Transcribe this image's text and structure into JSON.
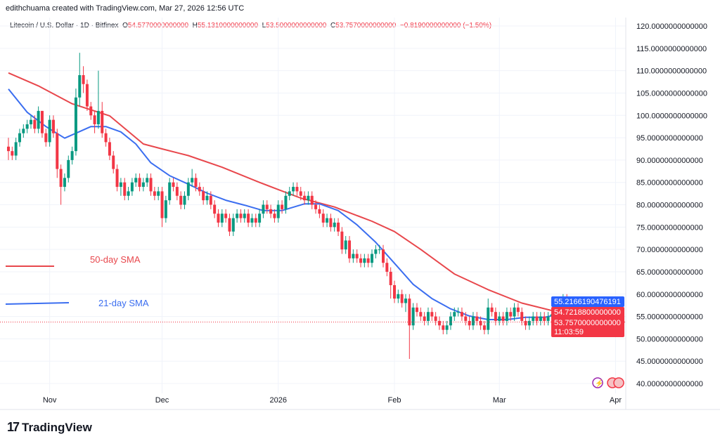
{
  "header": {
    "credit": "edithchuama created with TradingView.com, Mar 27, 2026 12:56 UTC",
    "symbol": "Litecoin / U.S. Dollar · 1D · Bitfinex",
    "o_label": "O",
    "o": "54.5770000000000",
    "h_label": "H",
    "h": "55.1310000000000",
    "l_label": "L",
    "l": "53.5000000000000",
    "c_label": "C",
    "c": "53.7570000000000",
    "change": "−0.8190000000000 (−1.50%)"
  },
  "logo": {
    "text": "TradingView",
    "mark": "17"
  },
  "colors": {
    "up": "#089981",
    "down": "#f23645",
    "sma21": "#3b6ef0",
    "sma50": "#e8474c",
    "grid": "#f0f3fa"
  },
  "chart_data": {
    "type": "candlestick",
    "title": "Litecoin / U.S. Dollar · 1D · Bitfinex",
    "ylim": [
      40,
      120
    ],
    "y_ticks": [
      "120.0000000000000",
      "115.0000000000000",
      "110.0000000000000",
      "105.0000000000000",
      "100.0000000000000",
      "95.0000000000000",
      "90.0000000000000",
      "85.0000000000000",
      "80.0000000000000",
      "75.0000000000000",
      "70.0000000000000",
      "65.0000000000000",
      "60.0000000000000",
      "55.0000000000000",
      "50.0000000000000",
      "45.0000000000000",
      "40.0000000000000"
    ],
    "x_ticks": [
      {
        "label": "Nov",
        "date": "2025-11-01"
      },
      {
        "label": "Dec",
        "date": "2025-12-01"
      },
      {
        "label": "2026",
        "date": "2026-01-01"
      },
      {
        "label": "Feb",
        "date": "2026-02-01"
      },
      {
        "label": "Mar",
        "date": "2026-03-01"
      },
      {
        "label": "Apr",
        "date": "2026-04-01"
      }
    ],
    "grid": true,
    "price_tags": [
      {
        "value": "55.2166190476191",
        "series": "21-day SMA",
        "color": "#2962ff"
      },
      {
        "value": "54.7218800000000",
        "series": "50-day SMA",
        "color": "#f23645"
      },
      {
        "value": "53.7570000000000",
        "countdown": "11:03:59",
        "series": "last",
        "color": "#f23645"
      }
    ],
    "legend": [
      {
        "name": "50-day SMA",
        "color": "#e8474c"
      },
      {
        "name": "21-day SMA",
        "color": "#3b6ef0"
      }
    ],
    "candles_fields": [
      "date",
      "open",
      "high",
      "low",
      "close"
    ],
    "candles": [
      [
        "2025-10-21",
        93,
        95,
        90,
        92
      ],
      [
        "2025-10-22",
        92,
        93,
        90,
        91
      ],
      [
        "2025-10-23",
        91,
        95,
        90,
        94
      ],
      [
        "2025-10-24",
        94,
        97,
        93,
        96
      ],
      [
        "2025-10-25",
        96,
        98,
        95,
        97
      ],
      [
        "2025-10-26",
        97,
        99,
        96,
        98
      ],
      [
        "2025-10-27",
        98,
        100,
        97,
        99
      ],
      [
        "2025-10-28",
        99,
        100,
        96,
        97
      ],
      [
        "2025-10-29",
        97,
        102,
        96,
        101
      ],
      [
        "2025-10-30",
        101,
        101,
        95,
        96
      ],
      [
        "2025-10-31",
        96,
        97,
        93,
        94
      ],
      [
        "2025-11-01",
        94,
        100,
        93,
        99
      ],
      [
        "2025-11-02",
        99,
        100,
        95,
        96
      ],
      [
        "2025-11-03",
        96,
        97,
        86,
        88
      ],
      [
        "2025-11-04",
        88,
        89,
        80,
        84
      ],
      [
        "2025-11-05",
        84,
        87,
        83,
        86
      ],
      [
        "2025-11-06",
        86,
        91,
        85,
        90
      ],
      [
        "2025-11-07",
        90,
        93,
        89,
        92
      ],
      [
        "2025-11-08",
        92,
        106,
        91,
        104
      ],
      [
        "2025-11-09",
        104,
        114,
        102,
        109
      ],
      [
        "2025-11-10",
        109,
        111,
        105,
        107
      ],
      [
        "2025-11-11",
        107,
        108,
        101,
        102
      ],
      [
        "2025-11-12",
        102,
        103,
        99,
        100
      ],
      [
        "2025-11-13",
        100,
        101,
        96,
        98
      ],
      [
        "2025-11-14",
        98,
        110,
        97,
        101
      ],
      [
        "2025-11-15",
        101,
        103,
        95,
        96
      ],
      [
        "2025-11-16",
        96,
        97,
        93,
        94
      ],
      [
        "2025-11-17",
        94,
        95,
        90,
        91
      ],
      [
        "2025-11-18",
        91,
        92,
        87,
        88
      ],
      [
        "2025-11-19",
        88,
        89,
        83,
        84
      ],
      [
        "2025-11-20",
        84,
        86,
        82,
        85
      ],
      [
        "2025-11-21",
        85,
        86,
        81,
        82
      ],
      [
        "2025-11-22",
        82,
        84,
        81,
        83
      ],
      [
        "2025-11-23",
        83,
        86,
        82,
        85
      ],
      [
        "2025-11-24",
        85,
        87,
        84,
        86
      ],
      [
        "2025-11-25",
        86,
        87,
        83,
        84
      ],
      [
        "2025-11-26",
        84,
        86,
        83,
        85
      ],
      [
        "2025-11-27",
        85,
        87,
        84,
        86
      ],
      [
        "2025-11-28",
        86,
        87,
        82,
        83
      ],
      [
        "2025-11-29",
        83,
        84,
        81,
        82
      ],
      [
        "2025-11-30",
        82,
        84,
        81,
        83
      ],
      [
        "2025-12-01",
        83,
        84,
        75,
        77
      ],
      [
        "2025-12-02",
        77,
        82,
        76,
        81
      ],
      [
        "2025-12-03",
        81,
        86,
        80,
        85
      ],
      [
        "2025-12-04",
        85,
        86,
        83,
        84
      ],
      [
        "2025-12-05",
        84,
        85,
        81,
        82
      ],
      [
        "2025-12-06",
        82,
        83,
        79,
        80
      ],
      [
        "2025-12-07",
        80,
        83,
        79,
        82
      ],
      [
        "2025-12-08",
        82,
        86,
        81,
        85
      ],
      [
        "2025-12-09",
        85,
        88,
        84,
        86
      ],
      [
        "2025-12-10",
        86,
        87,
        83,
        84
      ],
      [
        "2025-12-11",
        84,
        85,
        82,
        83
      ],
      [
        "2025-12-12",
        83,
        84,
        80,
        81
      ],
      [
        "2025-12-13",
        81,
        83,
        80,
        82
      ],
      [
        "2025-12-14",
        82,
        83,
        79,
        80
      ],
      [
        "2025-12-15",
        80,
        81,
        77,
        78
      ],
      [
        "2025-12-16",
        78,
        79,
        75,
        76
      ],
      [
        "2025-12-17",
        76,
        79,
        75,
        78
      ],
      [
        "2025-12-18",
        78,
        79,
        76,
        77
      ],
      [
        "2025-12-19",
        77,
        78,
        73,
        74
      ],
      [
        "2025-12-20",
        74,
        78,
        73,
        77
      ],
      [
        "2025-12-21",
        77,
        79,
        76,
        78
      ],
      [
        "2025-12-22",
        78,
        79,
        76,
        77
      ],
      [
        "2025-12-23",
        77,
        79,
        76,
        78
      ],
      [
        "2025-12-24",
        78,
        79,
        75,
        76
      ],
      [
        "2025-12-25",
        76,
        78,
        75,
        77
      ],
      [
        "2025-12-26",
        77,
        78,
        75,
        76
      ],
      [
        "2025-12-27",
        76,
        79,
        75,
        78
      ],
      [
        "2025-12-28",
        78,
        81,
        77,
        80
      ],
      [
        "2025-12-29",
        80,
        81,
        78,
        79
      ],
      [
        "2025-12-30",
        79,
        80,
        77,
        78
      ],
      [
        "2025-12-31",
        78,
        79,
        76,
        77
      ],
      [
        "2026-01-01",
        77,
        81,
        76,
        80
      ],
      [
        "2026-01-02",
        80,
        81,
        78,
        79
      ],
      [
        "2026-01-03",
        79,
        83,
        78,
        82
      ],
      [
        "2026-01-04",
        82,
        84,
        81,
        83
      ],
      [
        "2026-01-05",
        83,
        85,
        82,
        84
      ],
      [
        "2026-01-06",
        84,
        85,
        82,
        83
      ],
      [
        "2026-01-07",
        83,
        84,
        81,
        82
      ],
      [
        "2026-01-08",
        82,
        83,
        80,
        81
      ],
      [
        "2026-01-09",
        81,
        83,
        80,
        82
      ],
      [
        "2026-01-10",
        82,
        83,
        79,
        80
      ],
      [
        "2026-01-11",
        80,
        81,
        78,
        79
      ],
      [
        "2026-01-12",
        79,
        80,
        77,
        78
      ],
      [
        "2026-01-13",
        78,
        79,
        75,
        76
      ],
      [
        "2026-01-14",
        76,
        78,
        75,
        77
      ],
      [
        "2026-01-15",
        77,
        78,
        74,
        75
      ],
      [
        "2026-01-16",
        75,
        77,
        74,
        76
      ],
      [
        "2026-01-17",
        76,
        77,
        73,
        74
      ],
      [
        "2026-01-18",
        74,
        75,
        69,
        70
      ],
      [
        "2026-01-19",
        70,
        73,
        69,
        72
      ],
      [
        "2026-01-20",
        72,
        73,
        67,
        68
      ],
      [
        "2026-01-21",
        68,
        70,
        67,
        69
      ],
      [
        "2026-01-22",
        69,
        70,
        67,
        68
      ],
      [
        "2026-01-23",
        68,
        69,
        66,
        67
      ],
      [
        "2026-01-24",
        67,
        69,
        66,
        68
      ],
      [
        "2026-01-25",
        68,
        69,
        66,
        67
      ],
      [
        "2026-01-26",
        67,
        70,
        66,
        69
      ],
      [
        "2026-01-27",
        69,
        71,
        68,
        70
      ],
      [
        "2026-01-28",
        70,
        71,
        69,
        70
      ],
      [
        "2026-01-29",
        70,
        71,
        66,
        67
      ],
      [
        "2026-01-30",
        67,
        68,
        64,
        65
      ],
      [
        "2026-01-31",
        65,
        66,
        59,
        62
      ],
      [
        "2026-02-01",
        62,
        63,
        58,
        59
      ],
      [
        "2026-02-02",
        59,
        61,
        58,
        60
      ],
      [
        "2026-02-03",
        60,
        61,
        57,
        58
      ],
      [
        "2026-02-04",
        58,
        60,
        56,
        59
      ],
      [
        "2026-02-05",
        59,
        60,
        45.5,
        53
      ],
      [
        "2026-02-06",
        53,
        58,
        52,
        57
      ],
      [
        "2026-02-07",
        57,
        58,
        55,
        56
      ],
      [
        "2026-02-08",
        56,
        57,
        54,
        55
      ],
      [
        "2026-02-09",
        55,
        56,
        53,
        54
      ],
      [
        "2026-02-10",
        54,
        57,
        53,
        56
      ],
      [
        "2026-02-11",
        56,
        57,
        54,
        55
      ],
      [
        "2026-02-12",
        55,
        56,
        53,
        54
      ],
      [
        "2026-02-13",
        54,
        55,
        52,
        53
      ],
      [
        "2026-02-14",
        53,
        54,
        51,
        52
      ],
      [
        "2026-02-15",
        52,
        54,
        51,
        53
      ],
      [
        "2026-02-16",
        53,
        56,
        52,
        55
      ],
      [
        "2026-02-17",
        55,
        57,
        54,
        56
      ],
      [
        "2026-02-18",
        56,
        57,
        55,
        56
      ],
      [
        "2026-02-19",
        56,
        57,
        54,
        55
      ],
      [
        "2026-02-20",
        55,
        56,
        53,
        54
      ],
      [
        "2026-02-21",
        54,
        55,
        52,
        53
      ],
      [
        "2026-02-22",
        53,
        56,
        52,
        55
      ],
      [
        "2026-02-23",
        55,
        56,
        53,
        54
      ],
      [
        "2026-02-24",
        54,
        55,
        52,
        53
      ],
      [
        "2026-02-25",
        53,
        54,
        51,
        52
      ],
      [
        "2026-02-26",
        52,
        59,
        51,
        57
      ],
      [
        "2026-02-27",
        57,
        58,
        55,
        56
      ],
      [
        "2026-02-28",
        56,
        57,
        53,
        54
      ],
      [
        "2026-03-01",
        54,
        56,
        53,
        55
      ],
      [
        "2026-03-02",
        55,
        56,
        53,
        54
      ],
      [
        "2026-03-03",
        54,
        57,
        53,
        56
      ],
      [
        "2026-03-04",
        56,
        57,
        54,
        55
      ],
      [
        "2026-03-05",
        55,
        58,
        54,
        57
      ],
      [
        "2026-03-06",
        57,
        58,
        55,
        56
      ],
      [
        "2026-03-07",
        56,
        57,
        53,
        54
      ],
      [
        "2026-03-08",
        54,
        55,
        52,
        53
      ],
      [
        "2026-03-09",
        53,
        55,
        52,
        54
      ],
      [
        "2026-03-10",
        54,
        56,
        53,
        55
      ],
      [
        "2026-03-11",
        55,
        56,
        53,
        54
      ],
      [
        "2026-03-12",
        54,
        56,
        53,
        55
      ],
      [
        "2026-03-13",
        55,
        56,
        53,
        54
      ],
      [
        "2026-03-14",
        54,
        56,
        53,
        55
      ],
      [
        "2026-03-15",
        55,
        57,
        54,
        55.5
      ],
      [
        "2026-03-16",
        55.5,
        57,
        54,
        56
      ],
      [
        "2026-03-17",
        56,
        58,
        55,
        57
      ],
      [
        "2026-03-18",
        57,
        60,
        56,
        59
      ],
      [
        "2026-03-19",
        59,
        60,
        57,
        58
      ],
      [
        "2026-03-20",
        58,
        59,
        55,
        56
      ],
      [
        "2026-03-21",
        56,
        57,
        54,
        55
      ],
      [
        "2026-03-22",
        55,
        57,
        54,
        56
      ],
      [
        "2026-03-23",
        56,
        57,
        54,
        55
      ],
      [
        "2026-03-24",
        55,
        56,
        53,
        54
      ],
      [
        "2026-03-25",
        54,
        57,
        53.5,
        56.5
      ],
      [
        "2026-03-26",
        56.5,
        57,
        54,
        54.577
      ],
      [
        "2026-03-27",
        54.577,
        55.131,
        53.5,
        53.757
      ]
    ],
    "series": [
      {
        "name": "50-day SMA",
        "points": [
          [
            "2025-10-21",
            109.5
          ],
          [
            "2025-10-29",
            106.6
          ],
          [
            "2025-11-07",
            102.6
          ],
          [
            "2025-11-17",
            99.9
          ],
          [
            "2025-11-26",
            93.6
          ],
          [
            "2025-12-01",
            92.5
          ],
          [
            "2025-12-08",
            91
          ],
          [
            "2025-12-17",
            88.4
          ],
          [
            "2025-12-27",
            85
          ],
          [
            "2026-01-01",
            83.4
          ],
          [
            "2026-01-07",
            81.5
          ],
          [
            "2026-01-16",
            79.5
          ],
          [
            "2026-01-26",
            76.3
          ],
          [
            "2026-02-01",
            74
          ],
          [
            "2026-02-08",
            70
          ],
          [
            "2026-02-17",
            64.5
          ],
          [
            "2026-02-26",
            61
          ],
          [
            "2026-03-07",
            58
          ],
          [
            "2026-03-17",
            55.9
          ],
          [
            "2026-03-27",
            54.72
          ]
        ]
      },
      {
        "name": "21-day SMA",
        "points": [
          [
            "2025-10-21",
            105.9
          ],
          [
            "2025-10-26",
            100.7
          ],
          [
            "2025-10-31",
            97.5
          ],
          [
            "2025-11-05",
            94.9
          ],
          [
            "2025-11-08",
            96
          ],
          [
            "2025-11-12",
            97.5
          ],
          [
            "2025-11-16",
            97.5
          ],
          [
            "2025-11-20",
            96.3
          ],
          [
            "2025-11-24",
            93.6
          ],
          [
            "2025-11-28",
            89.4
          ],
          [
            "2025-12-03",
            86.5
          ],
          [
            "2025-12-08",
            84.6
          ],
          [
            "2025-12-13",
            82.6
          ],
          [
            "2025-12-18",
            81
          ],
          [
            "2025-12-23",
            79.9
          ],
          [
            "2025-12-28",
            78.7
          ],
          [
            "2026-01-02",
            78.7
          ],
          [
            "2026-01-08",
            80.2
          ],
          [
            "2026-01-12",
            80.2
          ],
          [
            "2026-01-17",
            78.7
          ],
          [
            "2026-01-22",
            75.5
          ],
          [
            "2026-01-27",
            71.6
          ],
          [
            "2026-02-01",
            66.9
          ],
          [
            "2026-02-06",
            62.2
          ],
          [
            "2026-02-11",
            59
          ],
          [
            "2026-02-16",
            56.7
          ],
          [
            "2026-02-21",
            55.1
          ],
          [
            "2026-02-26",
            54.3
          ],
          [
            "2026-03-03",
            54.3
          ],
          [
            "2026-03-08",
            54.8
          ],
          [
            "2026-03-13",
            54.8
          ],
          [
            "2026-03-18",
            55.7
          ],
          [
            "2026-03-23",
            55.4
          ],
          [
            "2026-03-27",
            55.22
          ]
        ]
      }
    ]
  }
}
